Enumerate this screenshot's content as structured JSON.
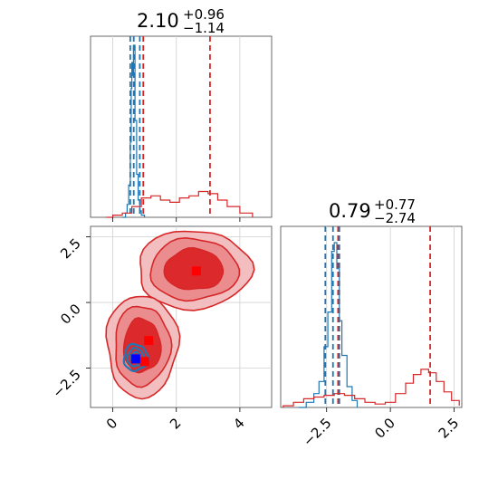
{
  "chart_data": [
    {
      "panel": "marginal-param1",
      "type": "histogram",
      "title_value": "2.10",
      "title_plus": "+0.96",
      "title_minus": "−1.14",
      "xlim": [
        -0.7,
        5.0
      ],
      "grid": true,
      "series": [
        {
          "color": "#1f77b4",
          "x": [
            0.3,
            0.4,
            0.45,
            0.5,
            0.55,
            0.58,
            0.6,
            0.62,
            0.65,
            0.7,
            0.75,
            0.8,
            0.85,
            0.9,
            1.0
          ],
          "density": [
            0,
            0.02,
            0.06,
            0.15,
            0.35,
            0.6,
            0.72,
            0.66,
            0.8,
            0.45,
            0.2,
            0.08,
            0.03,
            0.01,
            0
          ],
          "quantiles": [
            0.55,
            0.66,
            0.85
          ]
        },
        {
          "color": "#d62728",
          "x": [
            -0.2,
            0,
            0.3,
            0.6,
            0.9,
            1.2,
            1.5,
            1.8,
            2.1,
            2.4,
            2.7,
            3.0,
            3.3,
            3.6,
            4.0,
            4.4
          ],
          "density": [
            0,
            0.01,
            0.02,
            0.05,
            0.09,
            0.1,
            0.08,
            0.07,
            0.09,
            0.1,
            0.12,
            0.11,
            0.08,
            0.05,
            0.02,
            0
          ],
          "quantiles": [
            0.96,
            3.06
          ]
        }
      ]
    },
    {
      "panel": "marginal-param2",
      "type": "histogram",
      "title_value": "0.79",
      "title_plus": "+0.77",
      "title_minus": "−2.74",
      "xlim": [
        -4.3,
        2.8
      ],
      "xticks": [
        "−2.5",
        "0.0",
        "2.5"
      ],
      "grid": true,
      "series": [
        {
          "color": "#1f77b4",
          "x": [
            -3.6,
            -3.3,
            -3.0,
            -2.8,
            -2.6,
            -2.45,
            -2.3,
            -2.2,
            -2.1,
            -2.0,
            -1.9,
            -1.7,
            -1.5,
            -1.3
          ],
          "density": [
            0,
            0.03,
            0.08,
            0.15,
            0.35,
            0.55,
            0.9,
            0.95,
            0.8,
            0.5,
            0.3,
            0.12,
            0.04,
            0
          ],
          "quantiles": [
            -2.55,
            -2.25,
            -2.0
          ]
        },
        {
          "color": "#d62728",
          "x": [
            -4.2,
            -3.8,
            -3.4,
            -3.0,
            -2.6,
            -2.2,
            -1.8,
            -1.4,
            -1.0,
            -0.6,
            -0.2,
            0.2,
            0.6,
            0.9,
            1.2,
            1.5,
            1.8,
            2.1,
            2.4,
            2.7
          ],
          "density": [
            0.01,
            0.03,
            0.05,
            0.06,
            0.07,
            0.08,
            0.07,
            0.05,
            0.03,
            0.02,
            0.03,
            0.08,
            0.14,
            0.19,
            0.22,
            0.2,
            0.15,
            0.09,
            0.04,
            0.01
          ],
          "quantiles": [
            -2.05,
            1.56
          ]
        }
      ]
    },
    {
      "panel": "joint-param1-param2",
      "type": "contour",
      "xlim": [
        -0.7,
        5.0
      ],
      "ylim": [
        -4.0,
        2.9
      ],
      "xticks": [
        "0",
        "2",
        "4"
      ],
      "yticks": [
        "2.5",
        "0.0",
        "−2.5"
      ],
      "grid": true,
      "series": [
        {
          "color": "#d62728",
          "markers": [
            {
              "x": 2.63,
              "y": 1.2
            },
            {
              "x": 1.13,
              "y": -1.45
            },
            {
              "x": 1.0,
              "y": -2.25
            }
          ]
        },
        {
          "color": "#1f77b4",
          "markers": [
            {
              "x": 0.72,
              "y": -2.15
            }
          ]
        }
      ]
    }
  ]
}
